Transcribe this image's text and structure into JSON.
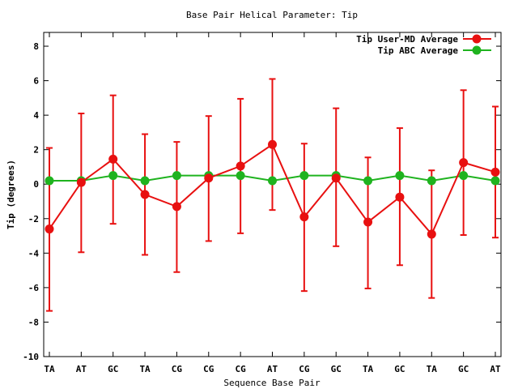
{
  "chart_data": {
    "type": "line",
    "title": "Base Pair Helical Parameter: Tip",
    "xlabel": "Sequence Base Pair",
    "ylabel": "Tip (degrees)",
    "categories": [
      "TA",
      "AT",
      "GC",
      "TA",
      "CG",
      "CG",
      "CG",
      "AT",
      "CG",
      "GC",
      "TA",
      "GC",
      "TA",
      "GC",
      "AT"
    ],
    "ylim": [
      -10,
      8.8
    ],
    "yticks": [
      -10,
      -8,
      -6,
      -4,
      -2,
      0,
      2,
      4,
      6,
      8
    ],
    "legend_position": "top-right",
    "grid": false,
    "series": [
      {
        "name": "Tip User-MD Average",
        "color": "#e81010",
        "values": [
          -2.6,
          0.1,
          1.45,
          -0.6,
          -1.3,
          0.35,
          1.05,
          2.3,
          -1.9,
          0.35,
          -2.2,
          -0.75,
          -2.9,
          1.25,
          0.7
        ],
        "err_low": [
          -7.35,
          -3.95,
          -2.3,
          -4.1,
          -5.1,
          -3.3,
          -2.85,
          -1.5,
          -6.2,
          -3.6,
          -6.05,
          -4.7,
          -6.6,
          -2.95,
          -3.1
        ],
        "err_high": [
          2.1,
          4.1,
          5.15,
          2.9,
          2.45,
          3.95,
          4.95,
          6.1,
          2.35,
          4.4,
          1.55,
          3.25,
          0.8,
          5.45,
          4.5
        ]
      },
      {
        "name": "Tip ABC Average",
        "color": "#1fb31f",
        "values": [
          0.2,
          0.2,
          0.5,
          0.2,
          0.5,
          0.5,
          0.5,
          0.2,
          0.5,
          0.5,
          0.2,
          0.5,
          0.2,
          0.5,
          0.2
        ]
      }
    ]
  }
}
